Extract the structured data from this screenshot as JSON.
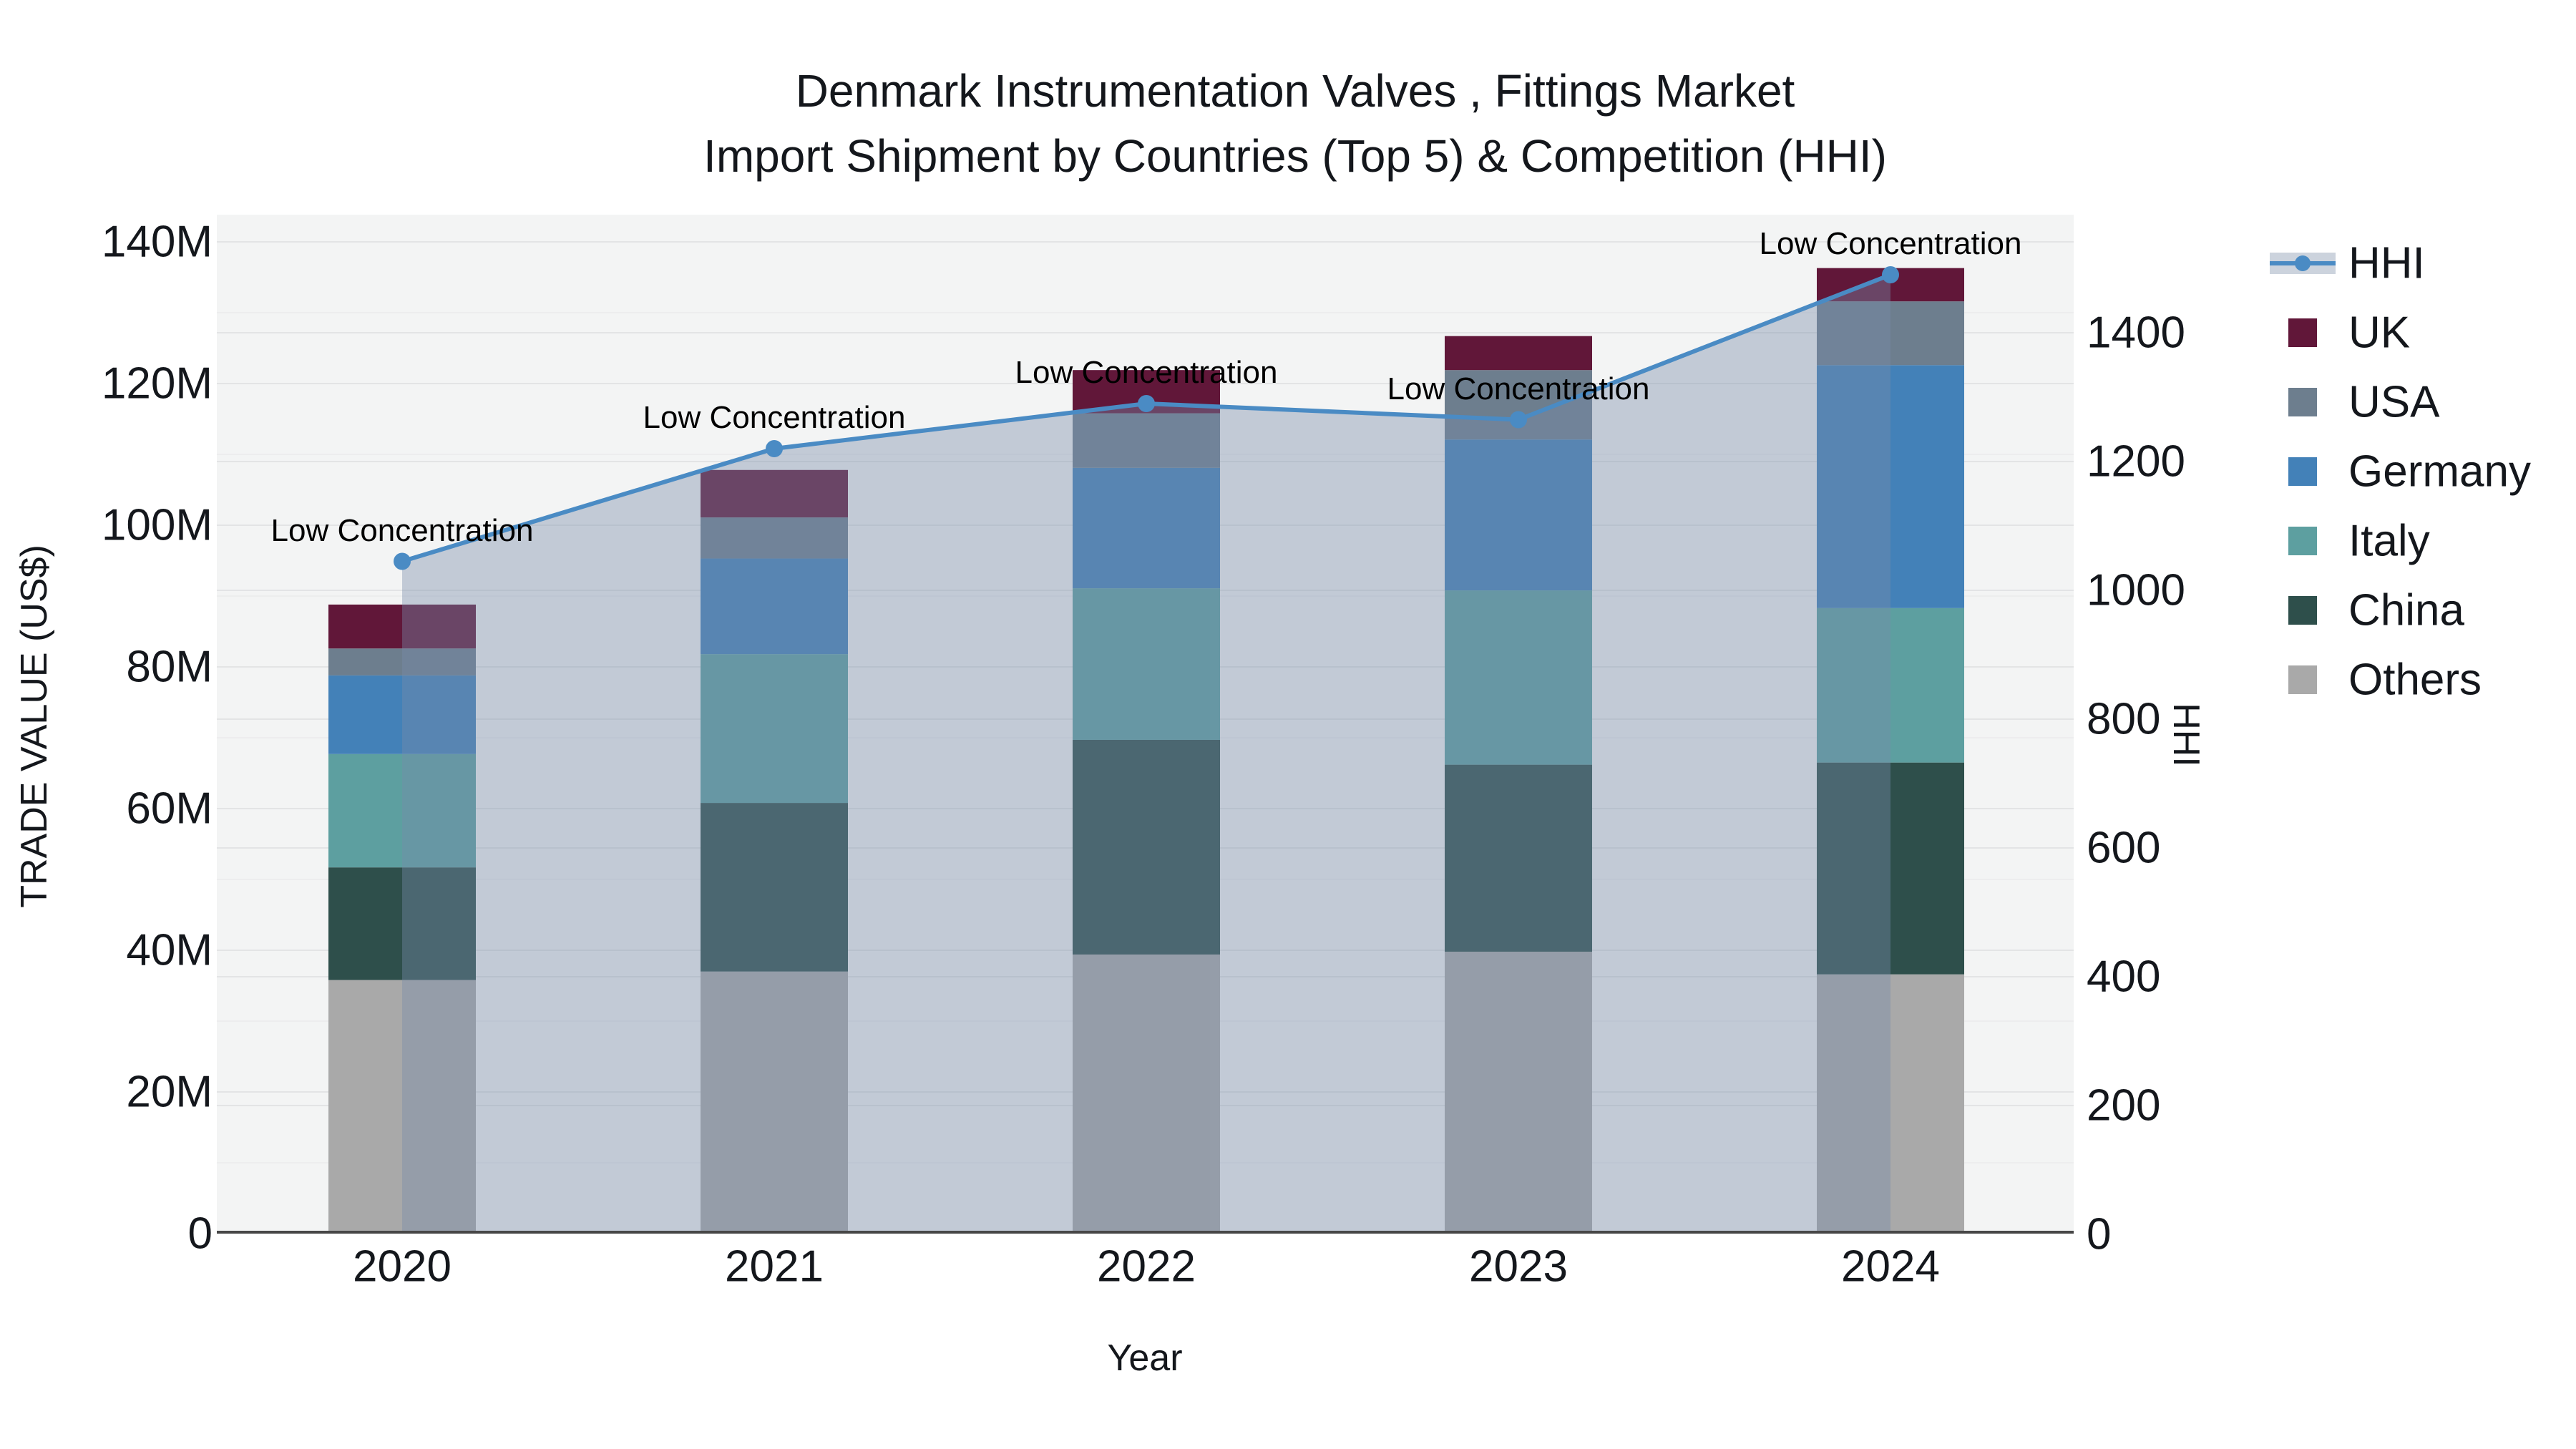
{
  "title": {
    "line1": "Denmark Instrumentation Valves , Fittings Market",
    "line2": "Import Shipment by Countries (Top 5) & Competition (HHI)"
  },
  "axes": {
    "x": {
      "title": "Year",
      "tick_labels": [
        "2020",
        "2021",
        "2022",
        "2023",
        "2024"
      ]
    },
    "y_left": {
      "title": "TRADE VALUE (US$)",
      "ticks": [
        {
          "v": 0,
          "label": "0"
        },
        {
          "v": 20,
          "label": "20M"
        },
        {
          "v": 40,
          "label": "40M"
        },
        {
          "v": 60,
          "label": "60M"
        },
        {
          "v": 80,
          "label": "80M"
        },
        {
          "v": 100,
          "label": "100M"
        },
        {
          "v": 120,
          "label": "120M"
        },
        {
          "v": 140,
          "label": "140M"
        }
      ]
    },
    "y_right": {
      "title": "HHI",
      "ticks": [
        {
          "v": 0,
          "label": "0"
        },
        {
          "v": 200,
          "label": "200"
        },
        {
          "v": 400,
          "label": "400"
        },
        {
          "v": 600,
          "label": "600"
        },
        {
          "v": 800,
          "label": "800"
        },
        {
          "v": 1000,
          "label": "1000"
        },
        {
          "v": 1200,
          "label": "1200"
        },
        {
          "v": 1400,
          "label": "1400"
        }
      ]
    }
  },
  "chart_data": {
    "type": "bar",
    "subtype": "stacked-bars-with-line-overlay",
    "categories": [
      "2020",
      "2021",
      "2022",
      "2023",
      "2024"
    ],
    "bar_unit": "Million US$",
    "series": [
      {
        "name": "Others",
        "color": "#a9a9a9",
        "values": [
          35.8,
          37.0,
          39.4,
          39.8,
          36.6
        ]
      },
      {
        "name": "China",
        "color": "#2e4f4b",
        "values": [
          15.9,
          23.8,
          30.3,
          26.4,
          29.9
        ]
      },
      {
        "name": "Italy",
        "color": "#5d9fa0",
        "values": [
          16.0,
          21.0,
          21.4,
          24.6,
          21.8
        ]
      },
      {
        "name": "Germany",
        "color": "#4381b8",
        "values": [
          11.1,
          13.5,
          17.0,
          21.3,
          34.3
        ]
      },
      {
        "name": "USA",
        "color": "#6d7e8e",
        "values": [
          3.8,
          5.8,
          7.7,
          9.8,
          9.0
        ]
      },
      {
        "name": "UK",
        "color": "#611739",
        "values": [
          6.2,
          6.7,
          6.1,
          4.8,
          4.7
        ]
      }
    ],
    "bar_totals": [
      88.8,
      107.8,
      121.9,
      126.7,
      136.3
    ],
    "line_series": {
      "name": "HHI",
      "color": "#4a8bc4",
      "area_fill": "rgba(120,140,170,0.4)",
      "values": [
        1045,
        1220,
        1290,
        1265,
        1490
      ]
    },
    "annotations": [
      "Low Concentration",
      "Low Concentration",
      "Low Concentration",
      "Low Concentration",
      "Low Concentration"
    ],
    "ylim_left": [
      0,
      143.8
    ],
    "ylim_right": [
      0,
      1583
    ],
    "grid": "on",
    "legend_position": "right"
  },
  "legend": {
    "items": [
      {
        "label": "HHI",
        "type": "line",
        "color": "#4a8bc4"
      },
      {
        "label": "UK",
        "type": "swatch",
        "color": "#611739"
      },
      {
        "label": "USA",
        "type": "swatch",
        "color": "#6d7e8e"
      },
      {
        "label": "Germany",
        "type": "swatch",
        "color": "#4381b8"
      },
      {
        "label": "Italy",
        "type": "swatch",
        "color": "#5d9fa0"
      },
      {
        "label": "China",
        "type": "swatch",
        "color": "#2e4f4b"
      },
      {
        "label": "Others",
        "type": "swatch",
        "color": "#a9a9a9"
      }
    ]
  }
}
